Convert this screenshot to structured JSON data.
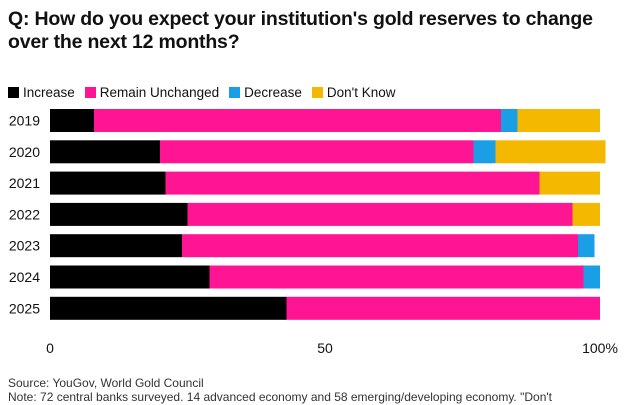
{
  "title": "Q: How do you expect your institution's gold reserves to change over the next 12 months?",
  "source": {
    "line1": "Source: YouGov, World Gold Council",
    "line2": "Note: 72 central banks surveyed. 14 advanced economy and 58 emerging/developing economy. \"Don't"
  },
  "chart_data": {
    "type": "bar",
    "orientation": "horizontal",
    "stacked": true,
    "categories": [
      "2019",
      "2020",
      "2021",
      "2022",
      "2023",
      "2024",
      "2025"
    ],
    "series": [
      {
        "name": "Increase",
        "color": "#000000",
        "values": [
          8,
          20,
          21,
          25,
          24,
          29,
          43
        ]
      },
      {
        "name": "Remain Unchanged",
        "color": "#ff1493",
        "values": [
          74,
          57,
          68,
          70,
          72,
          68,
          57
        ]
      },
      {
        "name": "Decrease",
        "color": "#1a9ee6",
        "values": [
          3,
          4,
          0,
          0,
          3,
          3,
          0
        ]
      },
      {
        "name": "Don't Know",
        "color": "#f5b800",
        "values": [
          15,
          20,
          11,
          5,
          0,
          0,
          0
        ]
      }
    ],
    "xlim": [
      0,
      100
    ],
    "x_ticks": [
      "0",
      "50",
      "100%"
    ],
    "x_tick_values": [
      0,
      50,
      100
    ],
    "legend_position": "top-left",
    "grid": false
  }
}
